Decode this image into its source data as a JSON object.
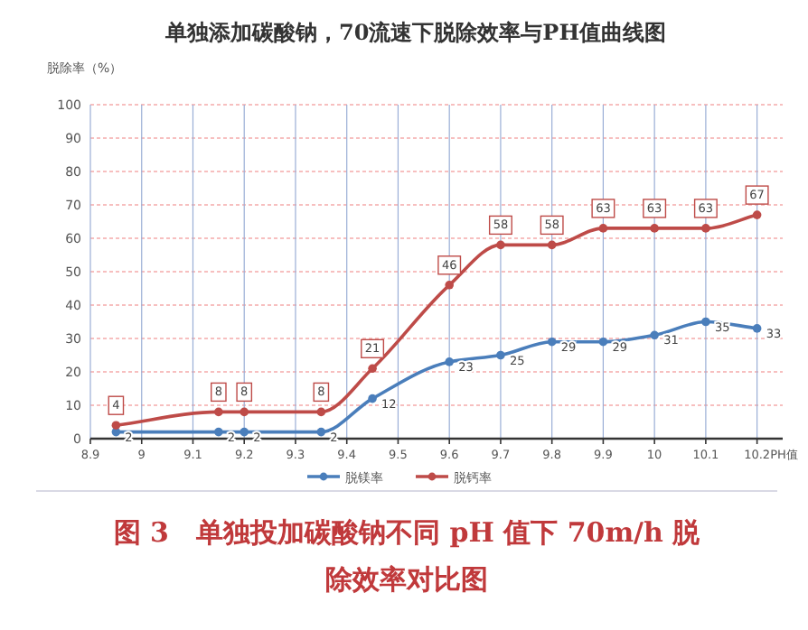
{
  "chart_data": {
    "type": "line",
    "title": "单独添加碳酸钠，70流速下脱除效率与PH值曲线图",
    "ylabel": "脱除率（%）",
    "xlabel": "PH值",
    "x": [
      8.95,
      9.15,
      9.2,
      9.35,
      9.45,
      9.6,
      9.7,
      9.8,
      9.9,
      10.0,
      10.1,
      10.2
    ],
    "series": [
      {
        "name": "脱镁率",
        "color": "#4a7ebb",
        "values": [
          2,
          2,
          2,
          2,
          12,
          23,
          25,
          29,
          29,
          31,
          35,
          33
        ]
      },
      {
        "name": "脱钙率",
        "color": "#be4b48",
        "values": [
          4,
          8,
          8,
          8,
          21,
          46,
          58,
          58,
          63,
          63,
          63,
          67
        ]
      }
    ],
    "xlim": [
      8.9,
      10.25
    ],
    "xticks": [
      8.9,
      9.0,
      9.1,
      9.2,
      9.3,
      9.4,
      9.5,
      9.6,
      9.7,
      9.8,
      9.9,
      10.0,
      10.1,
      10.2
    ],
    "ylim": [
      0,
      100
    ],
    "yticks": [
      0,
      10,
      20,
      30,
      40,
      50,
      60,
      70,
      80,
      90,
      100
    ],
    "grid": true,
    "legend": "bottom",
    "marker": "circle",
    "line_style": "solid",
    "data_labels": true,
    "annotations": [
      "图 3　单独投加碳酸钠不同 pH 值下 70m/h 脱除效率对比图"
    ]
  }
}
